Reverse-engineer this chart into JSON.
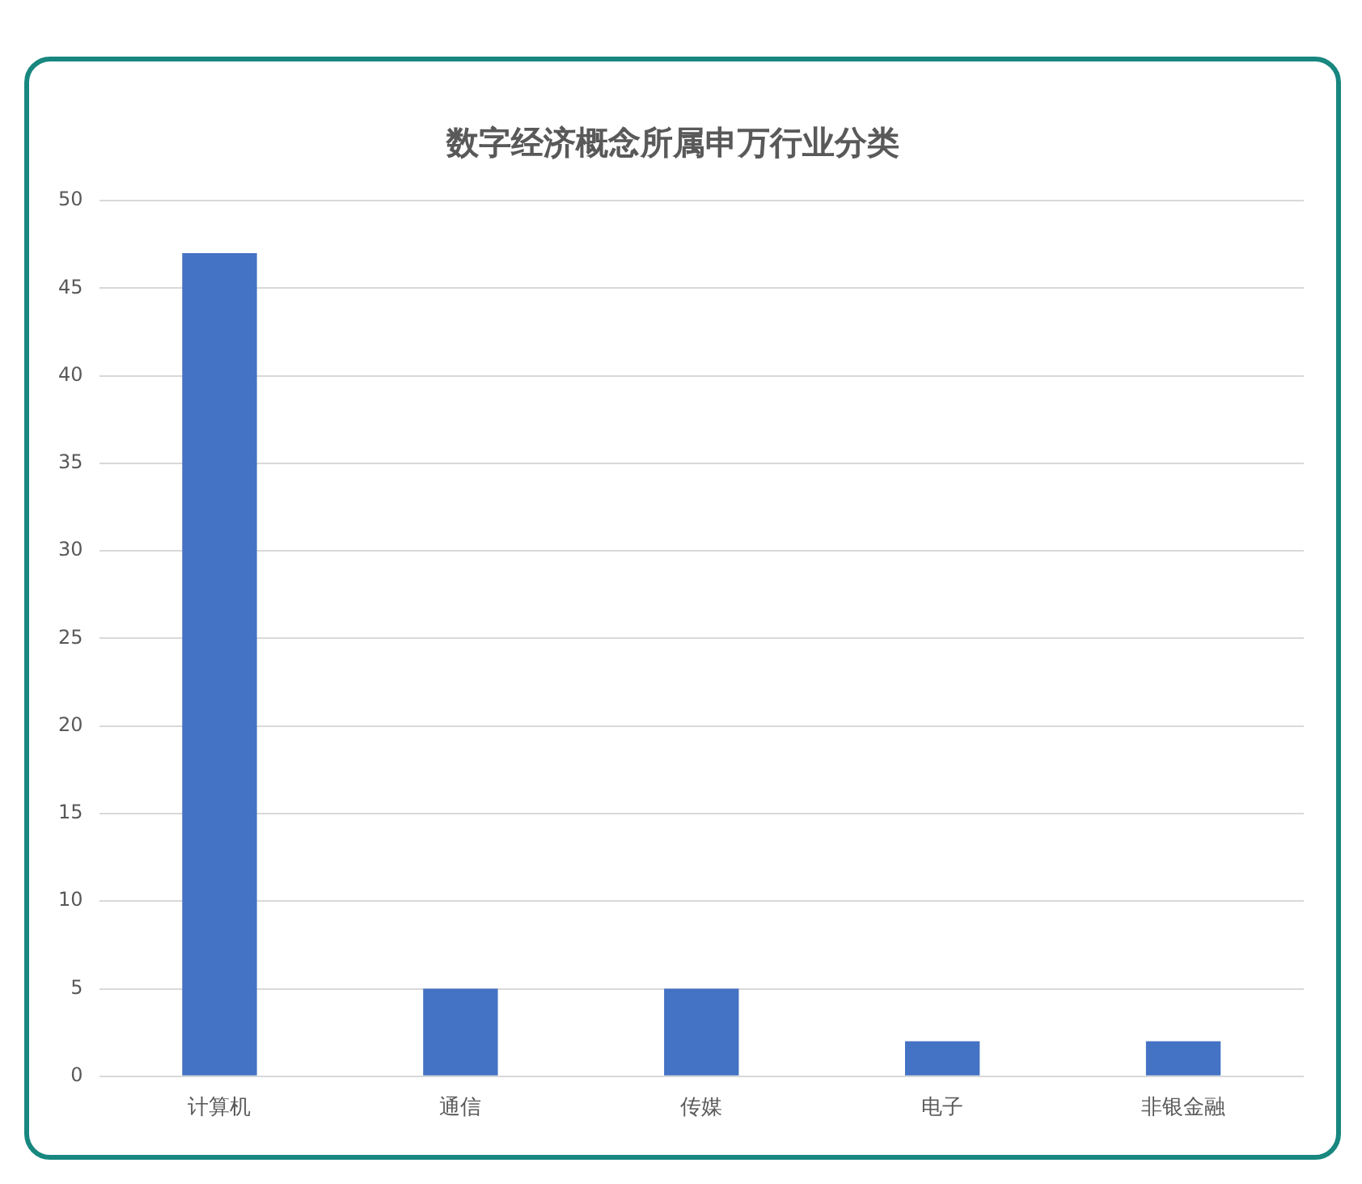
{
  "chart_data": {
    "type": "bar",
    "title": "数字经济概念所属申万行业分类",
    "categories": [
      "计算机",
      "通信",
      "传媒",
      "电子",
      "非银金融"
    ],
    "values": [
      47,
      5,
      5,
      2,
      2
    ],
    "color": "#4472c4",
    "ylim": [
      0,
      50
    ],
    "yticks": [
      0,
      5,
      10,
      15,
      20,
      25,
      30,
      35,
      40,
      45,
      50
    ],
    "grid": "y"
  }
}
